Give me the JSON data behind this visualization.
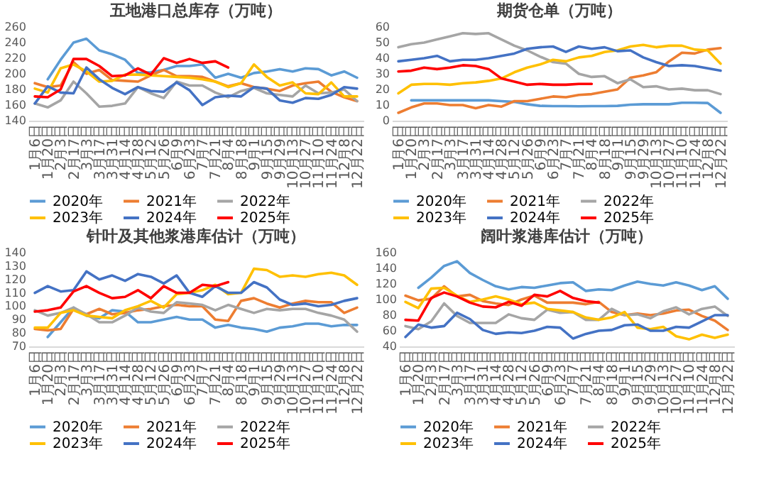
{
  "chart_data": [
    {
      "type": "line",
      "title": "五地港口总库存（万吨）",
      "categories": [
        "1月6日",
        "1月20日",
        "2月3日",
        "2月17日",
        "3月3日",
        "3月17日",
        "3月31日",
        "4月14日",
        "4月28日",
        "5月12日",
        "5月26日",
        "6月9日",
        "6月23日",
        "7月7日",
        "7月21日",
        "8月4日",
        "8月18日",
        "9月1日",
        "9月15日",
        "9月29日",
        "10月13日",
        "10月27日",
        "11月10日",
        "11月24日",
        "12月8日",
        "12月22日"
      ],
      "ylim": [
        140,
        260
      ],
      "yticks": [
        140,
        160,
        180,
        200,
        220,
        240,
        260
      ],
      "legend": "bottom",
      "series": [
        {
          "name": "2020年",
          "color": "#5b9bd5",
          "values": [
            null,
            193,
            218,
            240,
            245,
            230,
            225,
            218,
            201,
            202,
            205,
            210,
            210,
            212,
            195,
            200,
            195,
            201,
            203,
            206,
            203,
            207,
            206,
            198,
            203,
            195
          ]
        },
        {
          "name": "2021年",
          "color": "#ed7d31",
          "values": [
            188,
            183,
            185,
            215,
            200,
            205,
            192,
            191,
            190,
            198,
            205,
            197,
            197,
            196,
            190,
            184,
            188,
            183,
            181,
            178,
            185,
            188,
            190,
            177,
            170,
            165
          ]
        },
        {
          "name": "2022年",
          "color": "#a5a5a5",
          "values": [
            162,
            157,
            166,
            190,
            175,
            158,
            159,
            162,
            183,
            175,
            169,
            190,
            185,
            185,
            176,
            170,
            178,
            182,
            175,
            173,
            171,
            185,
            175,
            176,
            180,
            165
          ]
        },
        {
          "name": "2023年",
          "color": "#ffc000",
          "values": [
            181,
            176,
            207,
            212,
            203,
            190,
            191,
            199,
            199,
            198,
            197,
            196,
            195,
            193,
            190,
            183,
            188,
            212,
            196,
            185,
            189,
            175,
            174,
            189,
            171,
            171
          ]
        },
        {
          "name": "2024年",
          "color": "#4472c4",
          "values": [
            162,
            184,
            176,
            175,
            208,
            193,
            182,
            174,
            183,
            178,
            177,
            189,
            179,
            160,
            170,
            172,
            171,
            183,
            181,
            166,
            163,
            169,
            168,
            173,
            183,
            181
          ]
        },
        {
          "name": "2025年",
          "color": "#ff0000",
          "values": [
            171,
            170,
            180,
            219,
            219,
            210,
            197,
            198,
            207,
            199,
            220,
            214,
            219,
            214,
            216,
            208,
            null,
            null,
            null,
            null,
            null,
            null,
            null,
            null,
            null,
            null
          ]
        }
      ]
    },
    {
      "type": "line",
      "title": "期货仓单（万吨）",
      "categories": [
        "1月6日",
        "1月20日",
        "2月3日",
        "2月17日",
        "3月3日",
        "3月17日",
        "3月31日",
        "4月14日",
        "4月28日",
        "5月12日",
        "5月26日",
        "6月9日",
        "6月23日",
        "7月7日",
        "7月21日",
        "8月4日",
        "8月18日",
        "9月1日",
        "9月15日",
        "9月29日",
        "10月13日",
        "10月27日",
        "11月10日",
        "11月24日",
        "12月8日",
        "12月22日"
      ],
      "ylim": [
        0,
        60
      ],
      "yticks": [
        0,
        10,
        20,
        30,
        40,
        50,
        60
      ],
      "legend": "bottom",
      "series": [
        {
          "name": "2020年",
          "color": "#5b9bd5",
          "values": [
            null,
            13,
            13,
            13,
            13,
            13,
            13,
            13,
            12.5,
            12,
            10.5,
            9.5,
            9.3,
            9.3,
            9.2,
            9.3,
            9.3,
            9.5,
            10.2,
            10.5,
            10.5,
            10.5,
            11.5,
            11.5,
            11.3,
            5
          ]
        },
        {
          "name": "2021年",
          "color": "#ed7d31",
          "values": [
            5,
            8.5,
            11,
            11,
            10,
            10,
            8,
            10,
            9,
            12.5,
            12.5,
            14,
            15.5,
            15,
            16.5,
            17,
            18.5,
            20,
            27.5,
            29,
            31,
            38,
            43.5,
            43,
            45.5,
            46.5
          ]
        },
        {
          "name": "2022年",
          "color": "#a5a5a5",
          "values": [
            47,
            49,
            50,
            52,
            54,
            56,
            55.5,
            56,
            52,
            48,
            45,
            41,
            37.5,
            36.5,
            30,
            28,
            28.5,
            24,
            26.5,
            21.5,
            22,
            20,
            20.5,
            19.5,
            19.5,
            17
          ]
        },
        {
          "name": "2023年",
          "color": "#ffc000",
          "values": [
            17.5,
            23,
            23.5,
            23.5,
            23,
            24,
            24.5,
            25.5,
            27,
            31,
            34,
            36,
            39,
            38,
            40.5,
            41.5,
            44,
            45,
            47.5,
            48.5,
            47,
            48,
            48,
            45.5,
            45,
            36.5
          ]
        },
        {
          "name": "2024年",
          "color": "#4472c4",
          "values": [
            38,
            39,
            40,
            41.5,
            38,
            39,
            39,
            40,
            41.5,
            43,
            46,
            47,
            47.5,
            44,
            47.5,
            46,
            47,
            44.5,
            45,
            40.5,
            37.5,
            35,
            35.5,
            35,
            33.5,
            32
          ]
        },
        {
          "name": "2025年",
          "color": "#ff0000",
          "values": [
            31.5,
            32,
            34,
            33,
            34,
            35.5,
            35,
            33,
            27,
            25,
            23,
            23.5,
            23,
            23,
            23.5,
            23.5,
            null,
            null,
            null,
            null,
            null,
            null,
            null,
            null,
            null,
            null
          ]
        }
      ]
    },
    {
      "type": "line",
      "title": "针叶及其他浆港库估计（万吨）",
      "categories": [
        "1月6日",
        "1月20日",
        "2月3日",
        "2月17日",
        "3月3日",
        "3月17日",
        "3月31日",
        "4月14日",
        "4月28日",
        "5月12日",
        "5月26日",
        "6月9日",
        "6月23日",
        "7月7日",
        "7月21日",
        "8月4日",
        "8月18日",
        "9月1日",
        "9月15日",
        "9月29日",
        "10月13日",
        "10月27日",
        "11月10日",
        "11月24日",
        "12月8日",
        "12月22日"
      ],
      "ylim": [
        70,
        140
      ],
      "yticks": [
        70,
        80,
        90,
        100,
        110,
        120,
        130,
        140
      ],
      "legend": "bottom",
      "series": [
        {
          "name": "2020年",
          "color": "#5b9bd5",
          "values": [
            null,
            77,
            88,
            99,
            93,
            91,
            97,
            96,
            88,
            88,
            90,
            92,
            90,
            90,
            84,
            86,
            84,
            83,
            81,
            84,
            85,
            87,
            87,
            85,
            86,
            86
          ]
        },
        {
          "name": "2021年",
          "color": "#ed7d31",
          "values": [
            83,
            82,
            83,
            98,
            94,
            98,
            94,
            95,
            97,
            98,
            100,
            101,
            100,
            100,
            90,
            89,
            104,
            106,
            102,
            99,
            102,
            104,
            103,
            103,
            95,
            99
          ]
        },
        {
          "name": "2022年",
          "color": "#a5a5a5",
          "values": [
            97,
            93,
            95,
            99,
            94,
            88,
            88,
            93,
            99,
            96,
            95,
            103,
            102,
            101,
            97,
            101,
            98,
            95,
            98,
            97,
            98,
            98,
            95,
            93,
            90,
            81
          ]
        },
        {
          "name": "2023年",
          "color": "#ffc000",
          "values": [
            84,
            84,
            95,
            97,
            93,
            92,
            91,
            97,
            100,
            104,
            99,
            109,
            110,
            112,
            116,
            109,
            110,
            128,
            127,
            122,
            123,
            122,
            124,
            125,
            123,
            116
          ]
        },
        {
          "name": "2024年",
          "color": "#4472c4",
          "values": [
            110,
            115,
            111,
            112,
            126,
            120,
            123,
            119,
            124,
            122,
            117,
            123,
            110,
            107,
            115,
            110,
            110,
            118,
            114,
            105,
            101,
            102,
            100,
            101,
            104,
            106
          ]
        },
        {
          "name": "2025年",
          "color": "#ff0000",
          "values": [
            96,
            97,
            99,
            111,
            115,
            110,
            106,
            107,
            112,
            106,
            115,
            110,
            110,
            116,
            115,
            118,
            null,
            null,
            null,
            null,
            null,
            null,
            null,
            null,
            null,
            null
          ]
        }
      ]
    },
    {
      "type": "line",
      "title": "阔叶浆港库估计（万吨）",
      "categories": [
        "1月6日",
        "1月20日",
        "2月3日",
        "2月17日",
        "3月3日",
        "3月17日",
        "3月31日",
        "4月14日",
        "4月28日",
        "5月12日",
        "5月26日",
        "6月9日",
        "6月23日",
        "7月7日",
        "7月21日",
        "8月4日",
        "8月18日",
        "9月1日",
        "9月15日",
        "9月29日",
        "10月13日",
        "10月27日",
        "11月10日",
        "11月24日",
        "12月8日",
        "12月22日"
      ],
      "ylim": [
        40,
        160
      ],
      "yticks": [
        40,
        60,
        80,
        100,
        120,
        140,
        160
      ],
      "legend": "bottom",
      "series": [
        {
          "name": "2020年",
          "color": "#5b9bd5",
          "values": [
            null,
            115,
            128,
            143,
            149,
            134,
            125,
            117,
            113,
            116,
            115,
            118,
            121,
            122,
            111,
            113,
            112,
            118,
            123,
            120,
            118,
            122,
            118,
            112,
            117,
            101
          ]
        },
        {
          "name": "2021年",
          "color": "#ed7d31",
          "values": [
            105,
            99,
            101,
            117,
            104,
            106,
            98,
            95,
            93,
            100,
            105,
            96,
            96,
            96,
            94,
            97,
            84,
            80,
            82,
            80,
            82,
            86,
            87,
            79,
            73,
            61
          ]
        },
        {
          "name": "2022年",
          "color": "#a5a5a5",
          "values": [
            66,
            62,
            72,
            95,
            79,
            70,
            70,
            70,
            81,
            76,
            74,
            87,
            83,
            84,
            74,
            74,
            88,
            80,
            81,
            76,
            85,
            90,
            81,
            88,
            91,
            79
          ]
        },
        {
          "name": "2023年",
          "color": "#ffc000",
          "values": [
            97,
            89,
            114,
            115,
            105,
            97,
            100,
            104,
            100,
            94,
            96,
            88,
            86,
            84,
            77,
            74,
            77,
            84,
            64,
            62,
            65,
            53,
            49,
            55,
            51,
            55
          ]
        },
        {
          "name": "2024年",
          "color": "#4472c4",
          "values": [
            52,
            68,
            64,
            66,
            83,
            75,
            61,
            56,
            58,
            57,
            60,
            65,
            64,
            50,
            56,
            60,
            61,
            67,
            68,
            60,
            60,
            65,
            64,
            72,
            80,
            80
          ]
        },
        {
          "name": "2025年",
          "color": "#ff0000",
          "values": [
            74,
            73,
            102,
            109,
            104,
            96,
            91,
            90,
            97,
            92,
            106,
            104,
            111,
            102,
            98,
            96,
            null,
            null,
            null,
            null,
            null,
            null,
            null,
            null,
            null,
            null
          ]
        }
      ]
    }
  ]
}
